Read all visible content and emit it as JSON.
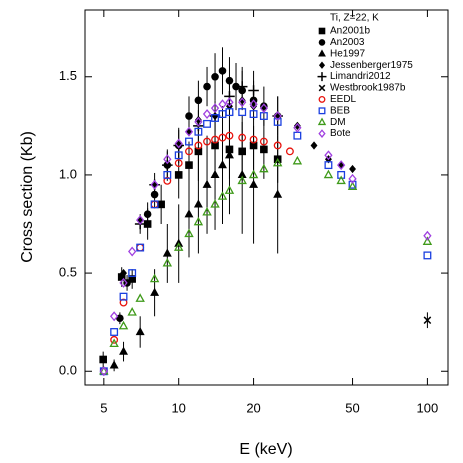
{
  "chart_data": {
    "type": "scatter",
    "x_label": "E (keV)",
    "y_label": "Cross section  (Kb)",
    "legend_title": "Ti, Z=22, K",
    "legend": "upper right",
    "xscale": "log",
    "xlim": [
      4.2,
      121
    ],
    "xticks": [
      5,
      10,
      20,
      50,
      100
    ],
    "ylim": [
      -0.07,
      1.84
    ],
    "yticks": [
      {
        "value": 0,
        "label": "0.0"
      },
      {
        "value": 0.5,
        "label": "0.5"
      },
      {
        "value": 1,
        "label": "1.0"
      },
      {
        "value": 1.5,
        "label": "1.5"
      }
    ],
    "series": [
      {
        "name": "An2001b",
        "marker": "square",
        "filled": true,
        "color": "#000000",
        "x": [
          4.97,
          5.9,
          6.5,
          7.5,
          8.5,
          10,
          11,
          12,
          14,
          16,
          18,
          20,
          22,
          25
        ],
        "values": [
          0.06,
          0.48,
          0.47,
          0.75,
          0.85,
          1.0,
          1.05,
          1.12,
          1.15,
          1.13,
          1.12,
          1.15,
          1.13,
          1.08
        ],
        "errors": [
          0.04,
          0.05,
          0.05,
          0.08,
          0.1,
          0.12,
          0.12,
          0.15,
          0.15,
          0.15,
          0.15,
          0.15,
          0.15,
          0.12
        ]
      },
      {
        "name": "An2003",
        "marker": "circle",
        "filled": true,
        "color": "#000000",
        "x": [
          5.8,
          6.2,
          7.5,
          8,
          9,
          10,
          11,
          12,
          13,
          14,
          15,
          16,
          17,
          18,
          20,
          22,
          25
        ],
        "values": [
          0.27,
          0.45,
          0.8,
          0.9,
          1.05,
          1.15,
          1.3,
          1.38,
          1.45,
          1.5,
          1.53,
          1.48,
          1.45,
          1.43,
          1.38,
          1.35,
          1.3
        ],
        "errors": [
          0.03,
          0.04,
          0.06,
          0.07,
          0.08,
          0.09,
          0.1,
          0.1,
          0.1,
          0.12,
          0.12,
          0.12,
          0.12,
          0.1,
          0.1,
          0.1,
          0.1
        ]
      },
      {
        "name": "He1997",
        "marker": "triangle",
        "filled": true,
        "color": "#000000",
        "x": [
          5.5,
          6,
          7,
          8,
          9,
          10,
          11,
          12,
          13,
          14,
          15,
          16,
          18,
          20,
          25
        ],
        "values": [
          0.03,
          0.1,
          0.2,
          0.4,
          0.6,
          0.65,
          0.8,
          0.85,
          0.95,
          1.0,
          1.05,
          1.1,
          1.0,
          0.95,
          0.9
        ],
        "errors": [
          0.03,
          0.05,
          0.08,
          0.12,
          0.15,
          0.2,
          0.22,
          0.25,
          0.25,
          0.28,
          0.3,
          0.3,
          0.3,
          0.3,
          0.3
        ]
      },
      {
        "name": "Jessenberger1975",
        "marker": "diamond",
        "filled": true,
        "color": "#000000",
        "x": [
          6,
          7,
          8,
          9,
          10,
          11,
          12,
          14,
          16,
          18,
          20,
          25,
          30,
          35,
          40,
          45,
          50
        ],
        "values": [
          0.5,
          0.77,
          0.95,
          1.05,
          1.15,
          1.22,
          1.28,
          1.3,
          1.35,
          1.38,
          1.35,
          1.3,
          1.25,
          1.15,
          1.08,
          1.05,
          1.03
        ]
      },
      {
        "name": "Limandri2012",
        "marker": "plus",
        "filled": true,
        "color": "#000000",
        "x": [
          7,
          8,
          9,
          10,
          12,
          14,
          16,
          18,
          20,
          25
        ],
        "values": [
          0.75,
          0.95,
          1.05,
          1.15,
          1.25,
          1.3,
          1.4,
          1.45,
          1.43,
          1.3
        ],
        "errors": [
          0.05,
          0.06,
          0.07,
          0.08,
          0.08,
          0.08,
          0.09,
          0.1,
          0.1,
          0.1
        ]
      },
      {
        "name": "Westbrook1987b",
        "marker": "cross",
        "filled": true,
        "color": "#000000",
        "x": [
          100
        ],
        "values": [
          0.26
        ],
        "errors": [
          0.04
        ]
      },
      {
        "name": "EEDL",
        "marker": "circle",
        "filled": false,
        "color": "#e8120c",
        "x": [
          5,
          5.5,
          6,
          7,
          8,
          9,
          10,
          11,
          12,
          13,
          14,
          15,
          16,
          18,
          20,
          22,
          25,
          28
        ],
        "values": [
          0.0,
          0.16,
          0.35,
          0.63,
          0.85,
          0.97,
          1.06,
          1.12,
          1.15,
          1.17,
          1.18,
          1.19,
          1.2,
          1.19,
          1.18,
          1.17,
          1.15,
          1.12
        ]
      },
      {
        "name": "BEB",
        "marker": "square",
        "filled": false,
        "color": "#1a3fe0",
        "x": [
          5,
          5.5,
          6,
          6.5,
          7,
          8,
          9,
          10,
          11,
          12,
          13,
          14,
          15,
          16,
          18,
          20,
          22,
          25,
          30,
          40,
          45,
          50,
          100
        ],
        "values": [
          0.0,
          0.2,
          0.38,
          0.5,
          0.63,
          0.85,
          1.0,
          1.1,
          1.17,
          1.22,
          1.26,
          1.29,
          1.31,
          1.32,
          1.32,
          1.31,
          1.3,
          1.27,
          1.2,
          1.05,
          1.0,
          0.95,
          0.59
        ]
      },
      {
        "name": "DM",
        "marker": "triangle",
        "filled": false,
        "color": "#3f9a1a",
        "x": [
          5,
          5.5,
          6,
          6.5,
          7,
          8,
          9,
          10,
          11,
          12,
          13,
          14,
          15,
          16,
          18,
          20,
          22,
          25,
          30,
          40,
          45,
          50,
          100
        ],
        "values": [
          0.0,
          0.14,
          0.23,
          0.3,
          0.37,
          0.47,
          0.55,
          0.63,
          0.7,
          0.76,
          0.81,
          0.85,
          0.89,
          0.92,
          0.97,
          1.0,
          1.03,
          1.06,
          1.07,
          1.0,
          0.97,
          0.94,
          0.66
        ]
      },
      {
        "name": "Bote",
        "marker": "diamond",
        "filled": false,
        "color": "#a040e0",
        "x": [
          5,
          5.5,
          6,
          6.5,
          7,
          8,
          9,
          10,
          11,
          12,
          13,
          14,
          15,
          16,
          18,
          20,
          22,
          25,
          30,
          40,
          45,
          50,
          100
        ],
        "values": [
          0.0,
          0.28,
          0.45,
          0.61,
          0.77,
          0.95,
          1.08,
          1.16,
          1.22,
          1.27,
          1.31,
          1.34,
          1.36,
          1.37,
          1.37,
          1.36,
          1.34,
          1.3,
          1.24,
          1.1,
          1.05,
          0.98,
          0.69
        ]
      }
    ]
  }
}
